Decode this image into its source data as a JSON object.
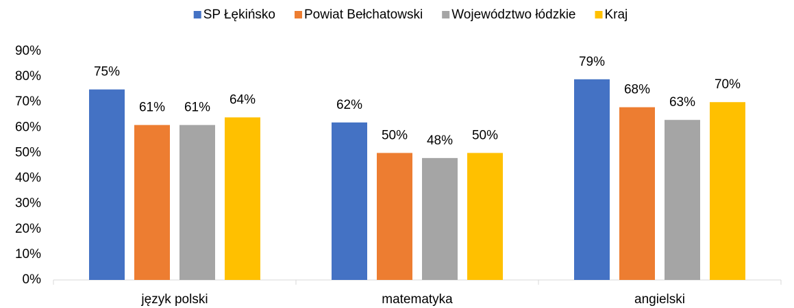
{
  "chart_data": {
    "type": "bar",
    "categories": [
      "język polski",
      "matematyka",
      "angielski"
    ],
    "series": [
      {
        "name": "SP Łękińsko",
        "color": "#4472c4",
        "values": [
          75,
          62,
          79
        ],
        "value_labels": [
          "75%",
          "62%",
          "79%"
        ]
      },
      {
        "name": "Powiat Bełchatowski",
        "color": "#ed7d31",
        "values": [
          61,
          50,
          68
        ],
        "value_labels": [
          "61%",
          "50%",
          "68%"
        ]
      },
      {
        "name": "Województwo łódzkie",
        "color": "#a5a5a5",
        "values": [
          61,
          48,
          63
        ],
        "value_labels": [
          "61%",
          "48%",
          "63%"
        ]
      },
      {
        "name": "Kraj",
        "color": "#ffc000",
        "values": [
          64,
          50,
          70
        ],
        "value_labels": [
          "64%",
          "50%",
          "70%"
        ]
      }
    ],
    "ylim": [
      0,
      90
    ],
    "yticks": [
      {
        "value": 0,
        "label": "0%"
      },
      {
        "value": 10,
        "label": "10%"
      },
      {
        "value": 20,
        "label": "20%"
      },
      {
        "value": 30,
        "label": "30%"
      },
      {
        "value": 40,
        "label": "40%"
      },
      {
        "value": 50,
        "label": "50%"
      },
      {
        "value": 60,
        "label": "60%"
      },
      {
        "value": 70,
        "label": "70%"
      },
      {
        "value": 80,
        "label": "80%"
      },
      {
        "value": 90,
        "label": "90%"
      }
    ],
    "grid": false,
    "legend": "top"
  }
}
